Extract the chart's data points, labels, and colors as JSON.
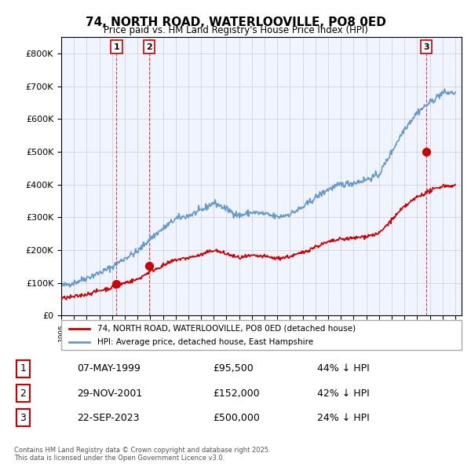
{
  "title": "74, NORTH ROAD, WATERLOOVILLE, PO8 0ED",
  "subtitle": "Price paid vs. HM Land Registry's House Price Index (HPI)",
  "ylabel": "",
  "ylim": [
    0,
    850000
  ],
  "yticks": [
    0,
    100000,
    200000,
    300000,
    400000,
    500000,
    600000,
    700000,
    800000
  ],
  "background_color": "#ffffff",
  "grid_color": "#cccccc",
  "sale_marker_color": "#cc0000",
  "hpi_line_color": "#6699cc",
  "price_line_color": "#cc0000",
  "sale1": {
    "date_num": 1999.35,
    "price": 95500,
    "label": "1"
  },
  "sale2": {
    "date_num": 2001.91,
    "price": 152000,
    "label": "2"
  },
  "sale3": {
    "date_num": 2023.73,
    "price": 500000,
    "label": "3"
  },
  "legend_entry1": "74, NORTH ROAD, WATERLOOVILLE, PO8 0ED (detached house)",
  "legend_entry2": "HPI: Average price, detached house, East Hampshire",
  "table_rows": [
    {
      "num": "1",
      "date": "07-MAY-1999",
      "price": "£95,500",
      "pct": "44% ↓ HPI"
    },
    {
      "num": "2",
      "date": "29-NOV-2001",
      "price": "£152,000",
      "pct": "42% ↓ HPI"
    },
    {
      "num": "3",
      "date": "22-SEP-2023",
      "price": "£500,000",
      "pct": "24% ↓ HPI"
    }
  ],
  "footnote": "Contains HM Land Registry data © Crown copyright and database right 2025.\nThis data is licensed under the Open Government Licence v3.0."
}
